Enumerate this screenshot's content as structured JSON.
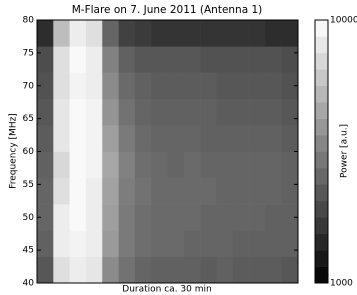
{
  "chart_data": {
    "type": "heatmap",
    "title": "M-Flare on 7. June 2011 (Antenna 1)",
    "xlabel": "Duration ca. 30 min",
    "ylabel": "Frequency [MHz]",
    "colorbar_label": "Power [a.u.]",
    "colormap": "gray",
    "color_scale": "log",
    "clim": [
      1000,
      10000
    ],
    "cticks": [
      1000,
      10000
    ],
    "ylim": [
      40,
      80
    ],
    "yticks": [
      40,
      45,
      50,
      55,
      60,
      65,
      70,
      75,
      80
    ],
    "y_edges": [
      40,
      44,
      48,
      52,
      56,
      60,
      64,
      68,
      72,
      76,
      80
    ],
    "z": [
      [
        2200,
        7500,
        8500,
        8000,
        3500,
        2800,
        2500,
        2400,
        2400,
        2400,
        2300,
        2400,
        2300,
        2300,
        2300,
        2200
      ],
      [
        2400,
        8500,
        9000,
        8500,
        4000,
        3000,
        2700,
        2600,
        2600,
        2500,
        2500,
        2500,
        2400,
        2400,
        2400,
        2400
      ],
      [
        2500,
        8500,
        9500,
        8500,
        4200,
        3000,
        2700,
        2600,
        2600,
        2600,
        2500,
        2500,
        2500,
        2500,
        2400,
        2400
      ],
      [
        2500,
        7500,
        9500,
        8500,
        4300,
        3100,
        2800,
        2600,
        2600,
        2600,
        2600,
        2500,
        2500,
        2500,
        2500,
        2400
      ],
      [
        2400,
        7000,
        9500,
        9000,
        4500,
        3200,
        2700,
        2600,
        2500,
        2600,
        2500,
        2500,
        2500,
        2500,
        2500,
        2400
      ],
      [
        2300,
        8000,
        9500,
        9000,
        4200,
        3000,
        2600,
        2500,
        2500,
        2500,
        2400,
        2400,
        2400,
        2400,
        2400,
        2300
      ],
      [
        2200,
        8000,
        9500,
        9000,
        3800,
        2800,
        2500,
        2400,
        2400,
        2400,
        2400,
        2300,
        2300,
        2300,
        2300,
        2200
      ],
      [
        2100,
        7500,
        9000,
        8500,
        3500,
        2600,
        2400,
        2300,
        2300,
        2300,
        2300,
        2200,
        2200,
        2200,
        2200,
        2100
      ],
      [
        2000,
        7500,
        9500,
        8500,
        3200,
        2400,
        2200,
        2200,
        2200,
        2200,
        2100,
        2100,
        2100,
        2100,
        2100,
        2000
      ],
      [
        1500,
        5500,
        8500,
        7500,
        2500,
        1800,
        1700,
        1600,
        1600,
        1600,
        1600,
        1600,
        1600,
        1600,
        1500,
        1500
      ]
    ]
  }
}
